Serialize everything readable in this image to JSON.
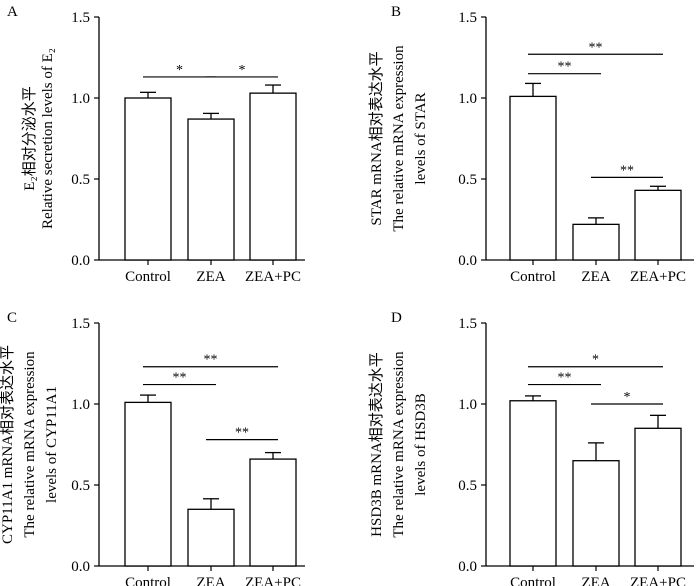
{
  "figure": {
    "background": "#ffffff",
    "bar_fill": "#ffffff",
    "ink": "#000000"
  },
  "chart_data": [
    {
      "type": "bar",
      "panel_label": "A",
      "categories": [
        "Control",
        "ZEA",
        "ZEA+PC"
      ],
      "values": [
        1.0,
        0.87,
        1.03
      ],
      "errors": [
        0.035,
        0.035,
        0.05
      ],
      "ylim": [
        0.0,
        1.5
      ],
      "yticks": [
        "0.0",
        "0.5",
        "1.0",
        "1.5"
      ],
      "ylabel_line1": "E₂相对分泌水平",
      "ylabel_line2": "Relative secretion levels of E₂",
      "ylabel_line3": "",
      "significance": [
        {
          "from": 0,
          "to": 1,
          "label": "*",
          "y": 1.13
        },
        {
          "from": 1,
          "to": 2,
          "label": "*",
          "y": 1.13
        }
      ]
    },
    {
      "type": "bar",
      "panel_label": "B",
      "categories": [
        "Control",
        "ZEA",
        "ZEA+PC"
      ],
      "values": [
        1.01,
        0.22,
        0.43
      ],
      "errors": [
        0.08,
        0.04,
        0.025
      ],
      "ylim": [
        0.0,
        1.5
      ],
      "yticks": [
        "0.0",
        "0.5",
        "1.0",
        "1.5"
      ],
      "ylabel_line1": "STAR mRNA相对表达水平",
      "ylabel_line2": "The relative mRNA expression",
      "ylabel_line3": "levels of STAR",
      "significance": [
        {
          "from": 0,
          "to": 2,
          "label": "**",
          "y": 1.27
        },
        {
          "from": 0,
          "to": 1,
          "label": "**",
          "y": 1.15
        },
        {
          "from": 1,
          "to": 2,
          "label": "**",
          "y": 0.51
        }
      ]
    },
    {
      "type": "bar",
      "panel_label": "C",
      "categories": [
        "Control",
        "ZEA",
        "ZEA+PC"
      ],
      "values": [
        1.01,
        0.35,
        0.66
      ],
      "errors": [
        0.045,
        0.065,
        0.04
      ],
      "ylim": [
        0.0,
        1.5
      ],
      "yticks": [
        "0.0",
        "0.5",
        "1.0",
        "1.5"
      ],
      "ylabel_line1": "CYP11A1 mRNA相对表达水平",
      "ylabel_line2": "The relative mRNA expression",
      "ylabel_line3": "levels of CYP11A1",
      "significance": [
        {
          "from": 0,
          "to": 2,
          "label": "**",
          "y": 1.23
        },
        {
          "from": 0,
          "to": 1,
          "label": "**",
          "y": 1.12
        },
        {
          "from": 1,
          "to": 2,
          "label": "**",
          "y": 0.78
        }
      ]
    },
    {
      "type": "bar",
      "panel_label": "D",
      "categories": [
        "Control",
        "ZEA",
        "ZEA+PC"
      ],
      "values": [
        1.02,
        0.65,
        0.85
      ],
      "errors": [
        0.03,
        0.11,
        0.08
      ],
      "ylim": [
        0.0,
        1.5
      ],
      "yticks": [
        "0.0",
        "0.5",
        "1.0",
        "1.5"
      ],
      "ylabel_line1": "HSD3B mRNA相对表达水平",
      "ylabel_line2": "The relative mRNA expression",
      "ylabel_line3": "levels of HSD3B",
      "significance": [
        {
          "from": 0,
          "to": 2,
          "label": "*",
          "y": 1.23
        },
        {
          "from": 0,
          "to": 1,
          "label": "**",
          "y": 1.12
        },
        {
          "from": 1,
          "to": 2,
          "label": "*",
          "y": 1.0
        }
      ]
    }
  ]
}
